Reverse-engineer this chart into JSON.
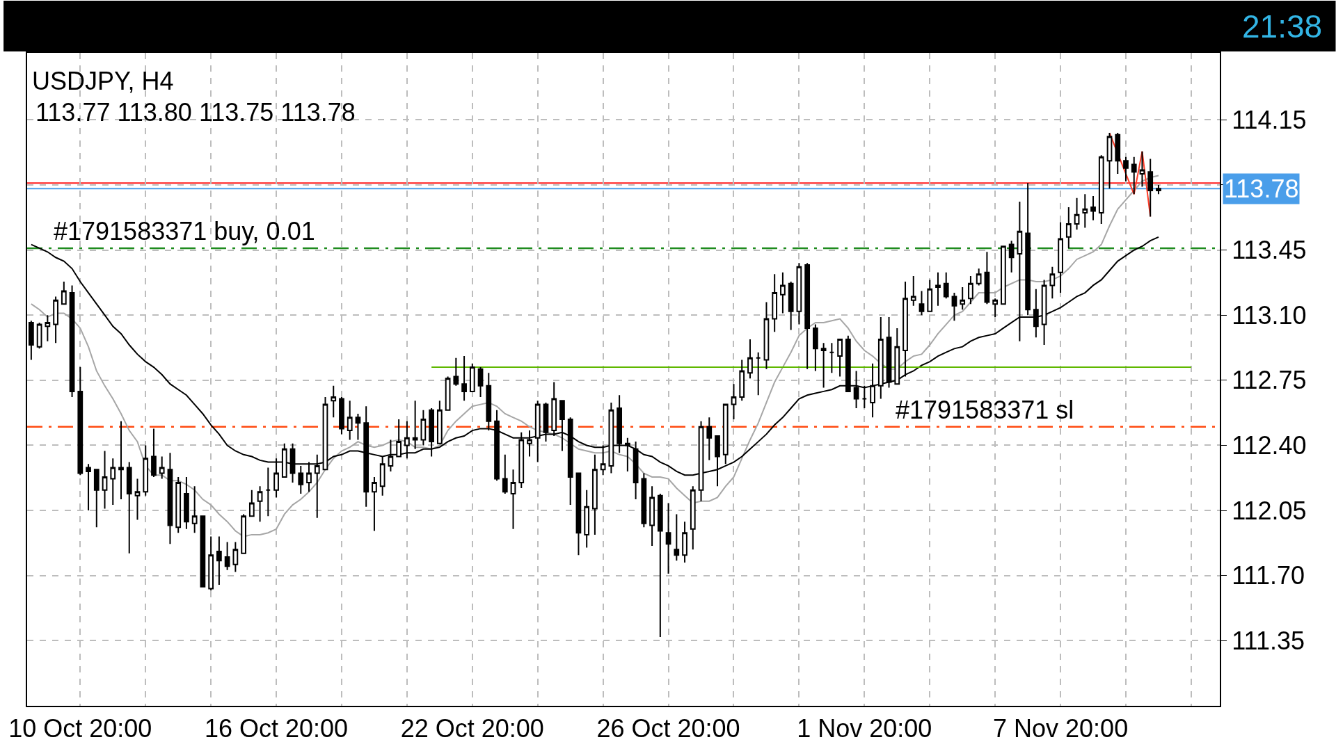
{
  "chart_data": {
    "type": "candlestick",
    "title": "USDJPY, H4",
    "subtitle": "113.77 113.80 113.75 113.78",
    "categories": [
      null,
      null,
      null,
      null,
      null,
      null,
      "10 Oct 20:00",
      null,
      null,
      null,
      null,
      null,
      null,
      null,
      null,
      null,
      null,
      null,
      null,
      null,
      null,
      null,
      null,
      null,
      null,
      null,
      null,
      null,
      null,
      null,
      "16 Oct 20:00",
      null,
      null,
      null,
      null,
      null,
      null,
      null,
      null,
      null,
      null,
      null,
      null,
      null,
      null,
      null,
      null,
      null,
      null,
      null,
      null,
      null,
      null,
      null,
      "22 Oct 20:00",
      null,
      null,
      null,
      null,
      null,
      null,
      null,
      null,
      null,
      null,
      null,
      null,
      null,
      null,
      null,
      null,
      null,
      null,
      null,
      null,
      null,
      null,
      null,
      "26 Oct 20:00",
      null,
      null,
      null,
      null,
      null,
      null,
      null,
      null,
      null,
      null,
      null,
      null,
      null,
      null,
      null,
      null,
      null,
      null,
      null,
      null,
      null,
      null,
      null,
      "1 Nov 20:00",
      null,
      null,
      null,
      null,
      null,
      null,
      null,
      null,
      null,
      null,
      null,
      null,
      null,
      null,
      null,
      null,
      null,
      null,
      null,
      null,
      null,
      null,
      null,
      "7 Nov 20:00",
      null,
      null,
      null,
      null,
      null,
      null,
      null,
      null,
      null,
      null,
      null,
      null,
      null,
      null,
      null,
      null,
      null,
      null,
      null
    ],
    "ohlc": [
      [
        113.06,
        113.07,
        112.86,
        112.94
      ],
      [
        112.93,
        113.06,
        112.92,
        113.05
      ],
      [
        113.04,
        113.1,
        112.96,
        113.06
      ],
      [
        113.05,
        113.2,
        112.95,
        113.18
      ],
      [
        113.16,
        113.28,
        113.16,
        113.23
      ],
      [
        113.22,
        113.26,
        112.66,
        112.69
      ],
      [
        112.69,
        112.82,
        112.24,
        112.25
      ],
      [
        112.28,
        112.3,
        112.05,
        112.26
      ],
      [
        112.27,
        112.27,
        111.96,
        112.16
      ],
      [
        112.16,
        112.37,
        112.06,
        112.23
      ],
      [
        112.22,
        112.33,
        112.08,
        112.28
      ],
      [
        112.27,
        112.53,
        112.11,
        112.28
      ],
      [
        112.28,
        112.31,
        111.82,
        112.14
      ],
      [
        112.13,
        112.22,
        112.0,
        112.15
      ],
      [
        112.15,
        112.4,
        112.13,
        112.33
      ],
      [
        112.34,
        112.49,
        112.23,
        112.24
      ],
      [
        112.25,
        112.34,
        112.22,
        112.28
      ],
      [
        112.27,
        112.36,
        111.87,
        111.97
      ],
      [
        111.96,
        112.23,
        111.93,
        112.2
      ],
      [
        112.14,
        112.23,
        111.95,
        111.99
      ],
      [
        111.98,
        112.18,
        111.93,
        112.02
      ],
      [
        112.02,
        112.02,
        111.64,
        111.64
      ],
      [
        111.63,
        111.91,
        111.62,
        111.81
      ],
      [
        111.83,
        111.91,
        111.65,
        111.78
      ],
      [
        111.8,
        111.88,
        111.73,
        111.75
      ],
      [
        111.76,
        111.88,
        111.72,
        111.84
      ],
      [
        111.82,
        112.03,
        111.82,
        112.02
      ],
      [
        112.02,
        112.16,
        112.02,
        112.09
      ],
      [
        112.1,
        112.18,
        111.99,
        112.15
      ],
      [
        112.16,
        112.28,
        112.02,
        112.16
      ],
      [
        112.16,
        112.33,
        112.12,
        112.25
      ],
      [
        112.23,
        112.41,
        112.23,
        112.38
      ],
      [
        112.38,
        112.41,
        112.2,
        112.25
      ],
      [
        112.25,
        112.29,
        112.14,
        112.19
      ],
      [
        112.2,
        112.31,
        112.15,
        112.25
      ],
      [
        112.25,
        112.35,
        112.01,
        112.29
      ],
      [
        112.27,
        112.66,
        112.27,
        112.62
      ],
      [
        112.64,
        112.72,
        112.55,
        112.66
      ],
      [
        112.65,
        112.66,
        112.46,
        112.49
      ],
      [
        112.48,
        112.64,
        112.43,
        112.55
      ],
      [
        112.55,
        112.57,
        112.43,
        112.52
      ],
      [
        112.52,
        112.61,
        112.07,
        112.15
      ],
      [
        112.15,
        112.23,
        111.94,
        112.2
      ],
      [
        112.18,
        112.34,
        112.13,
        112.3
      ],
      [
        112.29,
        112.43,
        112.26,
        112.34
      ],
      [
        112.34,
        112.54,
        112.34,
        112.42
      ],
      [
        112.4,
        112.53,
        112.33,
        112.44
      ],
      [
        112.43,
        112.64,
        112.38,
        112.44
      ],
      [
        112.43,
        112.59,
        112.4,
        112.54
      ],
      [
        112.59,
        112.6,
        112.34,
        112.42
      ],
      [
        112.41,
        112.64,
        112.41,
        112.59
      ],
      [
        112.59,
        112.77,
        112.59,
        112.76
      ],
      [
        112.77,
        112.87,
        112.72,
        112.73
      ],
      [
        112.73,
        112.88,
        112.64,
        112.69
      ],
      [
        112.69,
        112.84,
        112.69,
        112.82
      ],
      [
        112.81,
        112.82,
        112.66,
        112.72
      ],
      [
        112.72,
        112.79,
        112.48,
        112.53
      ],
      [
        112.53,
        112.59,
        112.21,
        112.22
      ],
      [
        112.22,
        112.35,
        112.14,
        112.15
      ],
      [
        112.14,
        112.27,
        111.95,
        112.2
      ],
      [
        112.2,
        112.47,
        112.17,
        112.43
      ],
      [
        112.41,
        112.48,
        112.34,
        112.43
      ],
      [
        112.44,
        112.64,
        112.31,
        112.62
      ],
      [
        112.62,
        112.63,
        112.42,
        112.47
      ],
      [
        112.48,
        112.74,
        112.45,
        112.65
      ],
      [
        112.64,
        112.64,
        112.37,
        112.54
      ],
      [
        112.54,
        112.55,
        112.08,
        112.23
      ],
      [
        112.25,
        112.25,
        111.81,
        111.93
      ],
      [
        111.92,
        112.16,
        111.85,
        112.07
      ],
      [
        112.06,
        112.35,
        111.92,
        112.27
      ],
      [
        112.27,
        112.4,
        112.24,
        112.3
      ],
      [
        112.29,
        112.63,
        112.25,
        112.59
      ],
      [
        112.6,
        112.67,
        112.36,
        112.41
      ],
      [
        112.41,
        112.44,
        112.26,
        112.4
      ],
      [
        112.38,
        112.42,
        112.11,
        112.2
      ],
      [
        112.22,
        112.25,
        111.96,
        111.98
      ],
      [
        111.97,
        112.18,
        111.86,
        112.12
      ],
      [
        112.13,
        112.14,
        111.37,
        111.94
      ],
      [
        111.93,
        112.09,
        111.71,
        111.87
      ],
      [
        111.84,
        112.03,
        111.78,
        111.81
      ],
      [
        111.81,
        111.99,
        111.77,
        111.93
      ],
      [
        111.95,
        112.18,
        111.84,
        112.16
      ],
      [
        112.16,
        112.53,
        112.1,
        112.5
      ],
      [
        112.5,
        112.55,
        112.32,
        112.44
      ],
      [
        112.45,
        112.45,
        112.18,
        112.34
      ],
      [
        112.35,
        112.62,
        112.3,
        112.62
      ],
      [
        112.62,
        112.73,
        112.54,
        112.66
      ],
      [
        112.66,
        112.86,
        112.64,
        112.8
      ],
      [
        112.79,
        112.97,
        112.76,
        112.87
      ],
      [
        112.87,
        112.9,
        112.67,
        112.87
      ],
      [
        112.86,
        113.17,
        112.81,
        113.08
      ],
      [
        113.08,
        113.32,
        113.01,
        113.22
      ],
      [
        113.21,
        113.33,
        113.11,
        113.26
      ],
      [
        113.27,
        113.28,
        113.02,
        113.12
      ],
      [
        113.12,
        113.38,
        113.05,
        113.36
      ],
      [
        113.37,
        113.38,
        112.81,
        113.03
      ],
      [
        113.03,
        113.05,
        112.8,
        112.92
      ],
      [
        112.92,
        112.95,
        112.71,
        112.91
      ],
      [
        112.9,
        112.95,
        112.79,
        112.9
      ],
      [
        112.88,
        112.97,
        112.77,
        112.97
      ],
      [
        112.97,
        112.99,
        112.69,
        112.69
      ],
      [
        112.71,
        112.8,
        112.6,
        112.65
      ],
      [
        112.65,
        112.72,
        112.6,
        112.65
      ],
      [
        112.63,
        112.84,
        112.55,
        112.72
      ],
      [
        112.72,
        113.09,
        112.65,
        112.97
      ],
      [
        112.98,
        113.09,
        112.71,
        112.74
      ],
      [
        112.73,
        113.03,
        112.73,
        112.93
      ],
      [
        112.91,
        113.28,
        112.77,
        113.19
      ],
      [
        113.18,
        113.31,
        113.15,
        113.2
      ],
      [
        113.16,
        113.23,
        113.1,
        113.12
      ],
      [
        113.12,
        113.29,
        113.12,
        113.24
      ],
      [
        113.25,
        113.33,
        113.15,
        113.26
      ],
      [
        113.27,
        113.33,
        113.19,
        113.2
      ],
      [
        113.2,
        113.22,
        113.07,
        113.15
      ],
      [
        113.16,
        113.25,
        113.13,
        113.18
      ],
      [
        113.19,
        113.31,
        113.16,
        113.27
      ],
      [
        113.27,
        113.35,
        113.26,
        113.32
      ],
      [
        113.33,
        113.44,
        113.16,
        113.17
      ],
      [
        113.16,
        113.19,
        113.09,
        113.18
      ],
      [
        113.16,
        113.47,
        113.16,
        113.47
      ],
      [
        113.48,
        113.5,
        113.33,
        113.41
      ],
      [
        113.43,
        113.71,
        112.96,
        113.55
      ],
      [
        113.54,
        113.81,
        113.1,
        113.13
      ],
      [
        113.13,
        113.24,
        112.98,
        113.04
      ],
      [
        113.05,
        113.29,
        112.94,
        113.26
      ],
      [
        113.26,
        113.36,
        113.19,
        113.32
      ],
      [
        113.33,
        113.6,
        113.22,
        113.51
      ],
      [
        113.52,
        113.68,
        113.46,
        113.59
      ],
      [
        113.59,
        113.73,
        113.56,
        113.64
      ],
      [
        113.65,
        113.75,
        113.57,
        113.67
      ],
      [
        113.68,
        113.74,
        113.61,
        113.66
      ],
      [
        113.65,
        113.96,
        113.59,
        113.95
      ],
      [
        113.93,
        114.08,
        113.78,
        114.06
      ],
      [
        114.07,
        114.08,
        113.86,
        113.93
      ],
      [
        113.93,
        113.95,
        113.82,
        113.89
      ],
      [
        113.91,
        113.95,
        113.75,
        113.87
      ],
      [
        113.86,
        113.98,
        113.79,
        113.88
      ],
      [
        113.87,
        113.94,
        113.63,
        113.77
      ],
      [
        113.77,
        113.8,
        113.75,
        113.78
      ],
      null,
      null,
      null,
      null,
      null,
      null,
      null
    ],
    "series": [
      {
        "type": "line",
        "color": "#a6a6a6",
        "values": [
          113.16,
          113.13,
          113.09,
          113.11,
          113.11,
          113.08,
          113.03,
          112.93,
          112.8,
          112.72,
          112.65,
          112.57,
          112.48,
          112.42,
          112.29,
          112.24,
          112.24,
          112.21,
          112.21,
          112.19,
          112.16,
          112.11,
          112.08,
          112.03,
          111.99,
          111.94,
          111.91,
          111.92,
          111.92,
          111.93,
          111.95,
          112.03,
          112.08,
          112.11,
          112.15,
          112.2,
          112.27,
          112.33,
          112.37,
          112.39,
          112.42,
          112.4,
          112.39,
          112.4,
          112.42,
          112.43,
          112.42,
          112.39,
          112.39,
          112.38,
          112.4,
          112.48,
          112.53,
          112.57,
          112.61,
          112.62,
          112.63,
          112.61,
          112.57,
          112.55,
          112.53,
          112.5,
          112.48,
          112.47,
          112.46,
          112.44,
          112.41,
          112.38,
          112.37,
          112.36,
          112.36,
          112.37,
          112.35,
          112.34,
          112.3,
          112.25,
          112.23,
          112.23,
          112.22,
          112.17,
          112.13,
          112.09,
          112.1,
          112.1,
          112.12,
          112.18,
          112.23,
          112.33,
          112.43,
          112.52,
          112.63,
          112.74,
          112.82,
          112.9,
          112.99,
          113.03,
          113.06,
          113.06,
          113.07,
          113.08,
          113.03,
          112.96,
          112.91,
          112.88,
          112.84,
          112.81,
          112.81,
          112.85,
          112.88,
          112.89,
          112.94,
          113.0,
          113.05,
          113.1,
          113.12,
          113.17,
          113.22,
          113.22,
          113.22,
          113.25,
          113.27,
          113.29,
          113.29,
          113.28,
          113.28,
          113.29,
          113.31,
          113.35,
          113.4,
          113.42,
          113.44,
          113.48,
          113.58,
          113.67,
          113.72,
          113.77,
          113.82,
          113.84,
          113.85,
          null,
          null,
          null,
          null,
          null,
          null,
          null
        ]
      },
      {
        "type": "line",
        "color": "#000000",
        "values": [
          113.48,
          113.46,
          113.44,
          113.41,
          113.39,
          113.35,
          113.28,
          113.22,
          113.16,
          113.1,
          113.04,
          113.0,
          112.94,
          112.89,
          112.85,
          112.82,
          112.78,
          112.73,
          112.7,
          112.67,
          112.62,
          112.57,
          112.51,
          112.46,
          112.4,
          112.37,
          112.35,
          112.34,
          112.32,
          112.31,
          112.31,
          112.31,
          112.3,
          112.3,
          112.3,
          112.3,
          112.31,
          112.34,
          112.35,
          112.37,
          112.37,
          112.36,
          112.35,
          112.34,
          112.35,
          112.35,
          112.36,
          112.36,
          112.38,
          112.38,
          112.39,
          112.42,
          112.44,
          112.45,
          112.48,
          112.49,
          112.49,
          112.48,
          112.46,
          112.44,
          112.44,
          112.44,
          112.45,
          112.46,
          112.46,
          112.47,
          112.45,
          112.42,
          112.4,
          112.39,
          112.39,
          112.4,
          112.4,
          112.4,
          112.38,
          112.35,
          112.34,
          112.31,
          112.29,
          112.26,
          112.24,
          112.24,
          112.25,
          112.26,
          112.27,
          112.29,
          112.31,
          112.34,
          112.38,
          112.42,
          112.46,
          112.51,
          112.55,
          112.6,
          112.65,
          112.67,
          112.68,
          112.69,
          112.7,
          112.72,
          112.72,
          112.72,
          112.71,
          112.72,
          112.73,
          112.74,
          112.75,
          112.78,
          112.8,
          112.83,
          112.85,
          112.88,
          112.9,
          112.92,
          112.93,
          112.96,
          112.98,
          112.99,
          113.0,
          113.03,
          113.06,
          113.09,
          113.09,
          113.09,
          113.1,
          113.12,
          113.14,
          113.17,
          113.2,
          113.22,
          113.26,
          113.29,
          113.34,
          113.39,
          113.42,
          113.45,
          113.47,
          113.5,
          113.52,
          null,
          null,
          null,
          null,
          null,
          null,
          null
        ]
      },
      {
        "type": "line",
        "color": "#5fb800",
        "values": [
          null,
          null,
          null,
          null,
          null,
          null,
          null,
          null,
          null,
          null,
          null,
          null,
          null,
          null,
          null,
          null,
          null,
          null,
          null,
          null,
          null,
          null,
          null,
          null,
          null,
          null,
          null,
          null,
          null,
          null,
          null,
          null,
          null,
          null,
          null,
          null,
          null,
          null,
          null,
          null,
          null,
          null,
          null,
          null,
          null,
          null,
          null,
          null,
          null,
          112.82,
          112.82,
          112.82,
          112.82,
          112.82,
          null,
          112.82,
          112.82,
          112.82,
          112.82,
          112.82,
          112.82,
          112.82,
          112.82,
          112.82,
          112.82,
          112.82,
          112.82,
          112.82,
          112.82,
          112.82,
          112.82,
          112.82,
          112.82,
          112.82,
          112.82,
          112.82,
          112.82,
          112.82,
          112.82,
          112.82,
          112.82,
          112.82,
          112.82,
          112.82,
          112.82,
          112.82,
          112.82,
          null,
          112.82,
          112.82,
          112.82,
          112.82,
          112.82,
          112.82,
          112.82,
          112.82,
          112.82,
          112.82,
          112.82,
          112.82,
          112.82,
          112.82,
          112.82,
          null,
          null,
          null,
          112.82,
          112.82,
          112.82,
          112.82,
          112.82,
          112.82,
          112.82,
          112.82,
          112.82,
          112.82,
          112.82,
          112.82,
          112.82,
          112.82,
          112.82,
          112.82,
          112.82,
          112.82,
          112.82,
          112.82,
          112.82,
          112.82,
          112.82,
          112.82,
          112.82,
          112.82,
          112.82,
          112.82,
          112.82,
          112.82,
          112.82,
          112.82,
          112.82,
          112.82,
          112.82,
          112.82,
          112.82,
          null,
          null,
          null
        ]
      },
      {
        "type": "line",
        "color": "#ff3c28",
        "values": [
          null,
          null,
          null,
          null,
          null,
          null,
          null,
          null,
          null,
          null,
          null,
          null,
          null,
          null,
          null,
          null,
          null,
          null,
          null,
          null,
          null,
          null,
          null,
          null,
          null,
          null,
          null,
          null,
          null,
          null,
          null,
          null,
          null,
          null,
          null,
          null,
          null,
          null,
          null,
          null,
          null,
          null,
          null,
          null,
          null,
          null,
          null,
          null,
          null,
          null,
          null,
          null,
          null,
          null,
          null,
          null,
          null,
          null,
          null,
          null,
          null,
          null,
          null,
          null,
          null,
          null,
          null,
          null,
          null,
          null,
          null,
          null,
          null,
          null,
          null,
          null,
          null,
          null,
          null,
          null,
          null,
          null,
          null,
          null,
          null,
          null,
          null,
          null,
          null,
          null,
          null,
          null,
          null,
          null,
          null,
          null,
          null,
          null,
          null,
          null,
          null,
          null,
          null,
          null,
          null,
          null,
          null,
          null,
          null,
          null,
          null,
          null,
          null,
          null,
          null,
          null,
          null,
          null,
          null,
          null,
          null,
          null,
          null,
          null,
          null,
          null,
          null,
          null,
          null,
          null,
          null,
          null,
          114.08,
          null,
          null,
          113.75,
          113.98,
          113.63,
          null,
          null,
          null,
          null,
          null,
          null,
          null,
          null
        ]
      }
    ],
    "ylim": [
      111.0,
      114.51
    ],
    "yticks": [
      111.35,
      {
        "value": 111.7,
        "label": "111.70"
      },
      112.05,
      {
        "value": 112.4,
        "label": "112.40"
      },
      112.75,
      {
        "value": 113.1,
        "label": "113.10"
      },
      113.45,
      {
        "value": 113.8,
        "label": null
      },
      114.15
    ],
    "grid": true,
    "ref_lines": [
      {
        "axis": "y",
        "value": 113.81,
        "color": "#ff1a1a"
      },
      {
        "axis": "y",
        "value": 113.78,
        "label": "113.78",
        "color": "#4a9eea"
      },
      {
        "axis": "y",
        "value": 113.46,
        "label": "#1791583371 buy, 0.01",
        "color": "#1e8c1e",
        "line_style": "dashdot"
      },
      {
        "axis": "y",
        "value": 112.5,
        "label": "#1791583371 sl",
        "color": "#ff4a10",
        "line_style": "dashdot"
      }
    ],
    "annotations": [
      "21:38"
    ]
  }
}
